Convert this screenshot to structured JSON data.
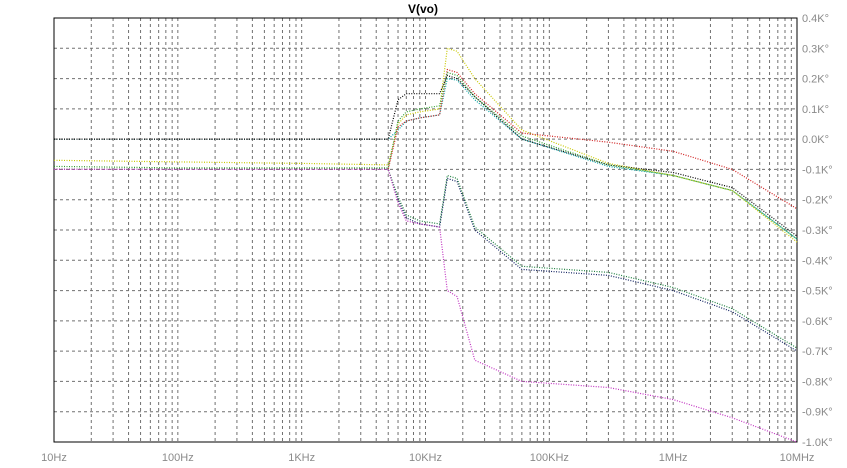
{
  "chart_data": {
    "type": "line",
    "title": "V(vo)",
    "x_scale": "log",
    "x_unit": "Hz",
    "xlim": [
      10,
      10000000
    ],
    "ylim": [
      -1000,
      400
    ],
    "y_unit": "°",
    "grid": true,
    "grid_style": "dashed",
    "x_tick_labels": [
      "10Hz",
      "100Hz",
      "1KHz",
      "10KHz",
      "100KHz",
      "1MHz",
      "10MHz"
    ],
    "y_tick_labels": [
      "0.4K°",
      "0.3K°",
      "0.2K°",
      "0.1K°",
      "0.0K°",
      "-0.1K°",
      "-0.2K°",
      "-0.3K°",
      "-0.4K°",
      "-0.5K°",
      "-0.6K°",
      "-0.7K°",
      "-0.8K°",
      "-0.9K°",
      "-1.0K°"
    ],
    "series": [
      {
        "color": "#00a0a0",
        "x": [
          10,
          100,
          1000,
          5000,
          6000,
          7000,
          9000,
          13000,
          15000,
          18000,
          25000,
          60000,
          300000,
          1000000,
          3000000,
          10000000
        ],
        "y": [
          0,
          0,
          0,
          0,
          30,
          60,
          70,
          80,
          200,
          195,
          130,
          0,
          -90,
          -120,
          -170,
          -330
        ]
      },
      {
        "color": "#000000",
        "x": [
          10,
          100,
          1000,
          5000,
          6000,
          7000,
          9000,
          13000,
          15000,
          18000,
          25000,
          60000,
          300000,
          1000000,
          3000000,
          10000000
        ],
        "y": [
          0,
          0,
          0,
          0,
          130,
          150,
          150,
          150,
          210,
          200,
          140,
          0,
          -85,
          -110,
          -160,
          -320
        ]
      },
      {
        "color": "#c8c800",
        "x": [
          10,
          100,
          1000,
          5000,
          6000,
          7000,
          9000,
          13000,
          15000,
          18000,
          25000,
          60000,
          300000,
          1000000,
          3000000,
          10000000
        ],
        "y": [
          -70,
          -75,
          -80,
          -85,
          50,
          80,
          90,
          100,
          300,
          290,
          200,
          30,
          -80,
          -120,
          -170,
          -340
        ]
      },
      {
        "color": "#d02020",
        "x": [
          10,
          100,
          1000,
          5000,
          6000,
          7000,
          9000,
          13000,
          15000,
          18000,
          25000,
          60000,
          300000,
          1000000,
          3000000,
          10000000
        ],
        "y": [
          -100,
          -100,
          -100,
          -100,
          40,
          60,
          70,
          80,
          230,
          220,
          150,
          20,
          -10,
          -40,
          -100,
          -230
        ]
      },
      {
        "color": "#30a030",
        "x": [
          10,
          100,
          1000,
          5000,
          6000,
          7000,
          9000,
          13000,
          15000,
          18000,
          25000,
          60000,
          300000,
          1000000,
          3000000,
          10000000
        ],
        "y": [
          -90,
          -95,
          -95,
          -95,
          60,
          90,
          100,
          110,
          220,
          210,
          140,
          10,
          -85,
          -120,
          -170,
          -330
        ]
      },
      {
        "color": "#102060",
        "x": [
          10,
          100,
          1000,
          5000,
          6000,
          7000,
          9000,
          13000,
          15000,
          18000,
          25000,
          60000,
          300000,
          1000000,
          3000000,
          10000000
        ],
        "y": [
          -100,
          -100,
          -100,
          -100,
          -200,
          -260,
          -280,
          -290,
          -130,
          -140,
          -300,
          -430,
          -450,
          -500,
          -570,
          -700
        ]
      },
      {
        "color": "#208040",
        "x": [
          10,
          100,
          1000,
          5000,
          6000,
          7000,
          9000,
          13000,
          15000,
          18000,
          25000,
          60000,
          300000,
          1000000,
          3000000,
          10000000
        ],
        "y": [
          -100,
          -100,
          -100,
          -100,
          -190,
          -250,
          -270,
          -280,
          -120,
          -130,
          -290,
          -420,
          -440,
          -490,
          -560,
          -690
        ]
      },
      {
        "color": "#c030c0",
        "x": [
          10,
          100,
          1000,
          5000,
          6000,
          7000,
          9000,
          13000,
          15000,
          18000,
          25000,
          60000,
          300000,
          1000000,
          3000000,
          10000000
        ],
        "y": [
          -100,
          -100,
          -100,
          -100,
          -210,
          -270,
          -280,
          -290,
          -500,
          -520,
          -730,
          -800,
          -820,
          -860,
          -920,
          -1000
        ]
      }
    ]
  }
}
